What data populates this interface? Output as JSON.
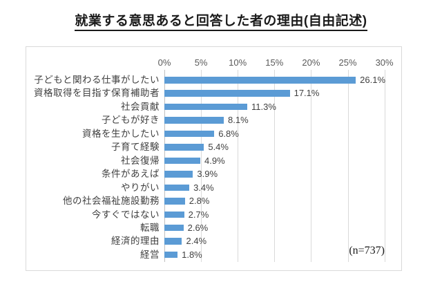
{
  "chart_data": {
    "type": "bar",
    "orientation": "horizontal",
    "title": "就業する意思あると回答した者の理由(自由記述)",
    "categories": [
      "子どもと関わる仕事がしたい",
      "資格取得を目指す保育補助者",
      "社会貢献",
      "子どもが好き",
      "資格を生かしたい",
      "子育て経験",
      "社会復帰",
      "条件があえば",
      "やりがい",
      "他の社会福祉施設勤務",
      "今すぐではない",
      "転職",
      "経済的理由",
      "経営"
    ],
    "values": [
      26.1,
      17.1,
      11.3,
      8.1,
      6.8,
      5.4,
      4.9,
      3.9,
      3.4,
      2.8,
      2.7,
      2.6,
      2.4,
      1.8
    ],
    "value_labels": [
      "26.1%",
      "17.1%",
      "11.3%",
      "8.1%",
      "6.8%",
      "5.4%",
      "4.9%",
      "3.9%",
      "3.4%",
      "2.8%",
      "2.7%",
      "2.6%",
      "2.4%",
      "1.8%"
    ],
    "x_axis": {
      "position": "top",
      "min": 0,
      "max": 30,
      "ticks": [
        "0%",
        "5%",
        "10%",
        "15%",
        "20%",
        "25%",
        "30%"
      ]
    },
    "annotation": "(n=737)",
    "legend": false,
    "grid": true,
    "colors": {
      "bar": "#5b9bd5",
      "gridline": "#d9d9d9",
      "axis_line": "#bfbfbf",
      "label_text": "#404040",
      "tick_text": "#595959",
      "border": "#d9d9d9"
    }
  }
}
